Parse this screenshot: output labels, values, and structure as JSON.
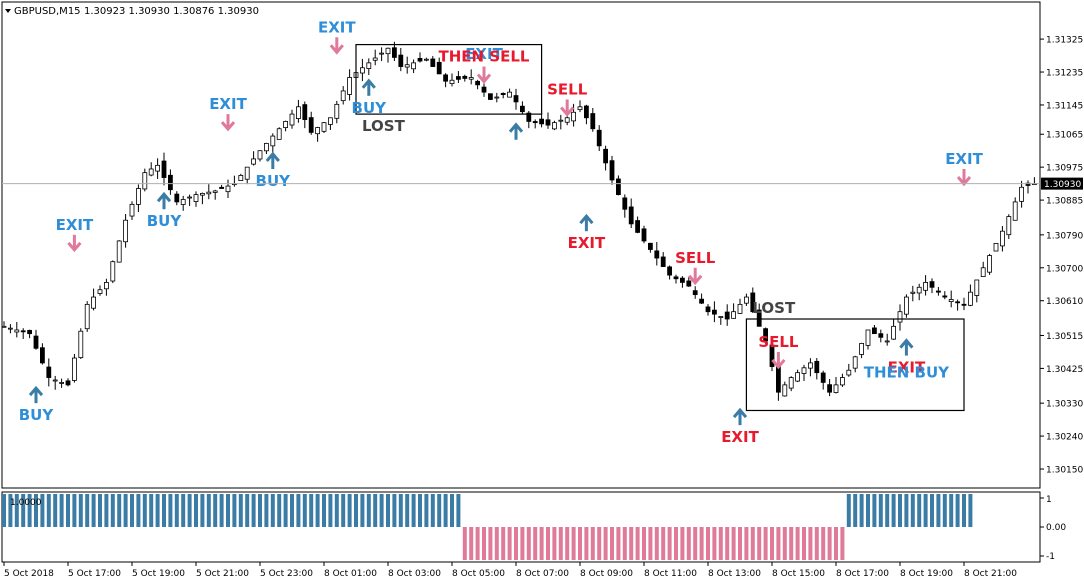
{
  "chart_data": {
    "type": "candlestick",
    "header": {
      "symbol": "GBPUSD,M15",
      "ohlc": "1.30923 1.30930 1.30876 1.30930"
    },
    "price_axis": {
      "ticks": [
        "1.31325",
        "1.31235",
        "1.31145",
        "1.31065",
        "1.30975",
        "1.30885",
        "1.30790",
        "1.30700",
        "1.30610",
        "1.30515",
        "1.30425",
        "1.30330",
        "1.30240",
        "1.30150"
      ],
      "ylim": [
        1.3012,
        1.3141
      ],
      "current_price": "1.30930",
      "current_price_value": 1.3093
    },
    "time_axis": {
      "labels": [
        "5 Oct 2018",
        "5 Oct 17:00",
        "5 Oct 19:00",
        "5 Oct 21:00",
        "5 Oct 23:00",
        "8 Oct 01:00",
        "8 Oct 03:00",
        "8 Oct 05:00",
        "8 Oct 07:00",
        "8 Oct 09:00",
        "8 Oct 11:00",
        "8 Oct 13:00",
        "8 Oct 15:00",
        "8 Oct 17:00",
        "8 Oct 19:00",
        "8 Oct 21:00"
      ]
    },
    "close_path": [
      [
        0,
        1.3054
      ],
      [
        4,
        1.3052
      ],
      [
        7,
        1.304
      ],
      [
        10,
        1.3038
      ],
      [
        13,
        1.306
      ],
      [
        16,
        1.3066
      ],
      [
        19,
        1.3083
      ],
      [
        22,
        1.3096
      ],
      [
        24,
        1.3098
      ],
      [
        27,
        1.3088
      ],
      [
        30,
        1.309
      ],
      [
        33,
        1.3091
      ],
      [
        36,
        1.3093
      ],
      [
        40,
        1.3102
      ],
      [
        44,
        1.311
      ],
      [
        46,
        1.3114
      ],
      [
        48,
        1.3107
      ],
      [
        51,
        1.3111
      ],
      [
        54,
        1.3122
      ],
      [
        57,
        1.3126
      ],
      [
        60,
        1.313
      ],
      [
        62,
        1.3125
      ],
      [
        66,
        1.3127
      ],
      [
        69,
        1.3121
      ],
      [
        73,
        1.3122
      ],
      [
        76,
        1.3116
      ],
      [
        79,
        1.3118
      ],
      [
        82,
        1.311
      ],
      [
        85,
        1.3109
      ],
      [
        88,
        1.3111
      ],
      [
        90,
        1.3114
      ],
      [
        92,
        1.3108
      ],
      [
        95,
        1.3094
      ],
      [
        98,
        1.3082
      ],
      [
        101,
        1.3075
      ],
      [
        104,
        1.3068
      ],
      [
        107,
        1.3065
      ],
      [
        110,
        1.3058
      ],
      [
        113,
        1.3056
      ],
      [
        116,
        1.3062
      ],
      [
        119,
        1.305
      ],
      [
        121,
        1.3036
      ],
      [
        123,
        1.304
      ],
      [
        126,
        1.3044
      ],
      [
        129,
        1.3036
      ],
      [
        132,
        1.3042
      ],
      [
        135,
        1.3053
      ],
      [
        138,
        1.305
      ],
      [
        141,
        1.3062
      ],
      [
        144,
        1.3066
      ],
      [
        147,
        1.3062
      ],
      [
        150,
        1.306
      ],
      [
        153,
        1.307
      ],
      [
        156,
        1.308
      ],
      [
        159,
        1.3092
      ],
      [
        161,
        1.3093
      ]
    ],
    "volume_indicator": {
      "label": "1.0000",
      "ticks": [
        "1",
        "0.00",
        "-1"
      ],
      "segments": [
        {
          "from": 0,
          "to": 71,
          "value": 1
        },
        {
          "from": 72,
          "to": 131,
          "value": -1
        },
        {
          "from": 132,
          "to": 151,
          "value": 1
        }
      ]
    },
    "signals": [
      {
        "kind": "exit",
        "text": "EXIT",
        "color": "#2e8fd8",
        "x": 11,
        "y": 1.3079,
        "arrow": "down"
      },
      {
        "kind": "buy",
        "text": "BUY",
        "color": "#2e8fd8",
        "x": 5,
        "y": 1.3033,
        "arrow": "up"
      },
      {
        "kind": "buy",
        "text": "BUY",
        "color": "#2e8fd8",
        "x": 25,
        "y": 1.3086,
        "arrow": "up"
      },
      {
        "kind": "exit",
        "text": "EXIT",
        "color": "#2e8fd8",
        "x": 35,
        "y": 1.3112,
        "arrow": "down"
      },
      {
        "kind": "buy",
        "text": "BUY",
        "color": "#2e8fd8",
        "x": 42,
        "y": 1.3097,
        "arrow": "up"
      },
      {
        "kind": "exit",
        "text": "EXIT",
        "color": "#2e8fd8",
        "x": 52,
        "y": 1.3133,
        "arrow": "down"
      },
      {
        "kind": "buy",
        "text": "BUY",
        "color": "#2e8fd8",
        "x": 57,
        "y": 1.3117,
        "arrow": "up"
      },
      {
        "kind": "exit",
        "text": "EXIT",
        "color": "#2e8fd8",
        "x": 75,
        "y": 1.3127,
        "arrow": "none"
      },
      {
        "kind": "sell",
        "text": "THEN SELL",
        "color": "#e8192c",
        "x": 75,
        "y": 1.3125,
        "arrow": "down"
      },
      {
        "kind": "buy",
        "text": "",
        "color": "#2e8fd8",
        "x": 80,
        "y": 1.3105,
        "arrow": "up"
      },
      {
        "kind": "sell",
        "text": "SELL",
        "color": "#e8192c",
        "x": 88,
        "y": 1.3116,
        "arrow": "down"
      },
      {
        "kind": "exit",
        "text": "EXIT",
        "color": "#e8192c",
        "x": 91,
        "y": 1.308,
        "arrow": "up"
      },
      {
        "kind": "sell",
        "text": "SELL",
        "color": "#e8192c",
        "x": 108,
        "y": 1.307,
        "arrow": "down"
      },
      {
        "kind": "exit",
        "text": "EXIT",
        "color": "#e8192c",
        "x": 115,
        "y": 1.3027,
        "arrow": "up"
      },
      {
        "kind": "sell",
        "text": "SELL",
        "color": "#e8192c",
        "x": 121,
        "y": 1.3047,
        "arrow": "down"
      },
      {
        "kind": "exit",
        "text": "EXIT",
        "color": "#e8192c",
        "x": 141,
        "y": 1.3046,
        "arrow": "up"
      },
      {
        "kind": "buy",
        "text": "THEN BUY",
        "color": "#2e8fd8",
        "x": 141,
        "y": 1.304,
        "arrow": "none"
      },
      {
        "kind": "exit",
        "text": "EXIT",
        "color": "#2e8fd8",
        "x": 150,
        "y": 1.3097,
        "arrow": "down"
      }
    ],
    "boxes": [
      {
        "label": "LOST",
        "x1": 55,
        "x2": 84,
        "y1": 1.3131,
        "y2": 1.3112
      },
      {
        "label": "LOST",
        "x1": 116,
        "x2": 150,
        "y1": 1.3056,
        "y2": 1.3031
      }
    ],
    "colors": {
      "bull": "#ffffff",
      "bear": "#000000",
      "wick": "#000000",
      "indicator_pos": "#3a7ca5",
      "indicator_neg": "#e07a9a",
      "buy": "#2e8fd8",
      "sell": "#e8192c",
      "lost": "#444444"
    }
  }
}
